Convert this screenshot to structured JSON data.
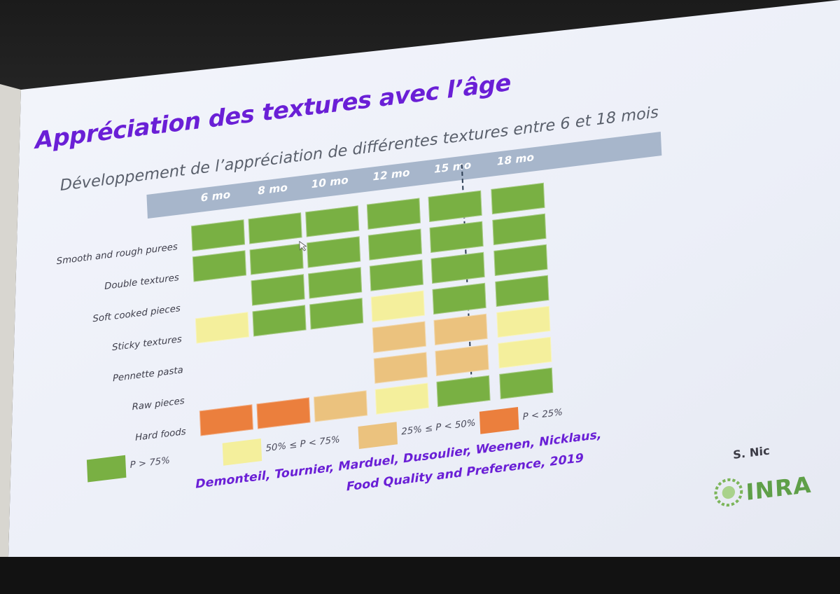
{
  "slide": {
    "title": "Appréciation des textures avec l’âge",
    "subtitle": "Développement de l’appréciation de différentes textures entre 6 et 18 mois",
    "author": "S. Nic",
    "logo_text": "INRA",
    "citation_line1": "Demonteil, Tournier, Marduel, Dusoulier, Weenen, Nicklaus,",
    "citation_line2": "Food Quality and Preference, 2019"
  },
  "colors": {
    "slide_bg": "#eef2fb",
    "title": "#6a1fd6",
    "header_band": "#a7b6cb",
    "p_gt_75": "#79b043",
    "p_50_75": "#f4ef9c",
    "p_25_50": "#ebc27e",
    "p_lt_25": "#eb7f3d"
  },
  "chart_data": {
    "type": "heatmap",
    "columns": [
      "6 mo",
      "8 mo",
      "10 mo",
      "12 mo",
      "15 mo",
      "18 mo"
    ],
    "rows": [
      {
        "label": "Smooth and rough purees",
        "values": [
          "P > 75%",
          "P > 75%",
          "P > 75%",
          "P > 75%",
          "P > 75%",
          "P > 75%"
        ]
      },
      {
        "label": "Double textures",
        "values": [
          "P > 75%",
          "P > 75%",
          "P > 75%",
          "P > 75%",
          "P > 75%",
          "P > 75%"
        ]
      },
      {
        "label": "Soft cooked pieces",
        "values": [
          null,
          "P > 75%",
          "P > 75%",
          "P > 75%",
          "P > 75%",
          "P > 75%"
        ]
      },
      {
        "label": "Sticky textures",
        "values": [
          "50% ≤ P < 75%",
          "P > 75%",
          "P > 75%",
          "50% ≤ P < 75%",
          "P > 75%",
          "P > 75%"
        ]
      },
      {
        "label": "Pennette pasta",
        "values": [
          null,
          null,
          null,
          "25% ≤ P < 50%",
          "25% ≤ P < 50%",
          "50% ≤ P < 75%"
        ]
      },
      {
        "label": "Raw pieces",
        "values": [
          null,
          null,
          null,
          "25% ≤ P < 50%",
          "25% ≤ P < 50%",
          "50% ≤ P < 75%"
        ]
      },
      {
        "label": "Hard foods",
        "values": [
          "P < 25%",
          "P < 25%",
          "25% ≤ P < 50%",
          "50% ≤ P < 75%",
          "P > 75%",
          "P > 75%"
        ]
      }
    ],
    "legend": [
      {
        "label": "P > 75%",
        "color": "#79b043"
      },
      {
        "label": "50% ≤ P < 75%",
        "color": "#f4ef9c"
      },
      {
        "label": "25% ≤ P < 50%",
        "color": "#ebc27e"
      },
      {
        "label": "P < 25%",
        "color": "#eb7f3d"
      }
    ]
  }
}
